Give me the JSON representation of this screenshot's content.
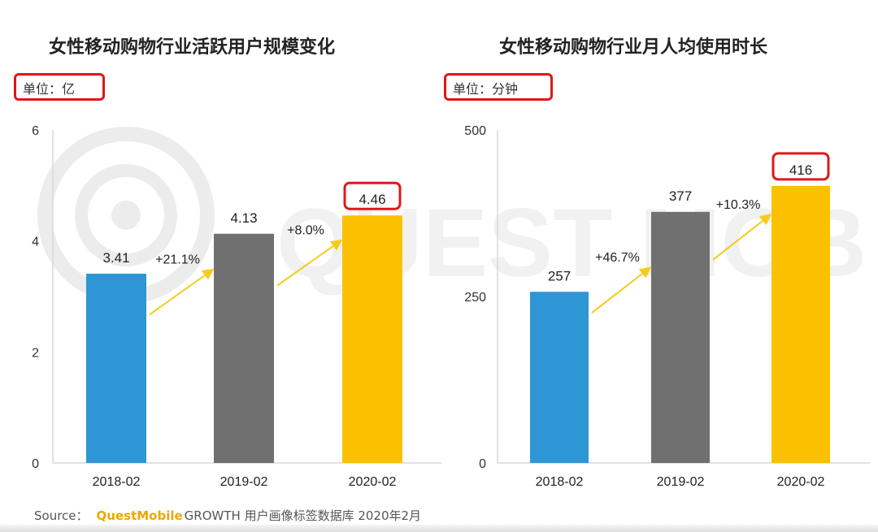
{
  "source": {
    "label": "Source：",
    "brand": "QuestMobile",
    "text": "GROWTH 用户画像标签数据库 2020年2月"
  },
  "watermark": "QUEST MOBILE",
  "colors": {
    "bar_2018": "#2e96d4",
    "bar_2019": "#707070",
    "bar_2020": "#fbc100",
    "arrow": "#f5cc1a",
    "highlight": "#e01818"
  },
  "chart_data": [
    {
      "type": "bar",
      "title": "女性移动购物行业活跃用户规模变化",
      "unit_label": "单位：亿",
      "categories": [
        "2018-02",
        "2019-02",
        "2020-02"
      ],
      "values": [
        3.41,
        4.13,
        4.46
      ],
      "value_labels": [
        "3.41",
        "4.13",
        "4.46"
      ],
      "ylim": [
        0,
        6
      ],
      "yticks": [
        "0",
        "2",
        "4",
        "6"
      ],
      "growth_labels": [
        "+21.1%",
        "+8.0%"
      ],
      "highlighted_value_index": 2,
      "grid": false
    },
    {
      "type": "bar",
      "title": "女性移动购物行业月人均使用时长",
      "unit_label": "单位：分钟",
      "categories": [
        "2018-02",
        "2019-02",
        "2020-02"
      ],
      "values": [
        257,
        377,
        416
      ],
      "value_labels": [
        "257",
        "377",
        "416"
      ],
      "ylim": [
        0,
        500
      ],
      "yticks": [
        "0",
        "250",
        "500"
      ],
      "growth_labels": [
        "+46.7%",
        "+10.3%"
      ],
      "highlighted_value_index": 2,
      "grid": false
    }
  ]
}
